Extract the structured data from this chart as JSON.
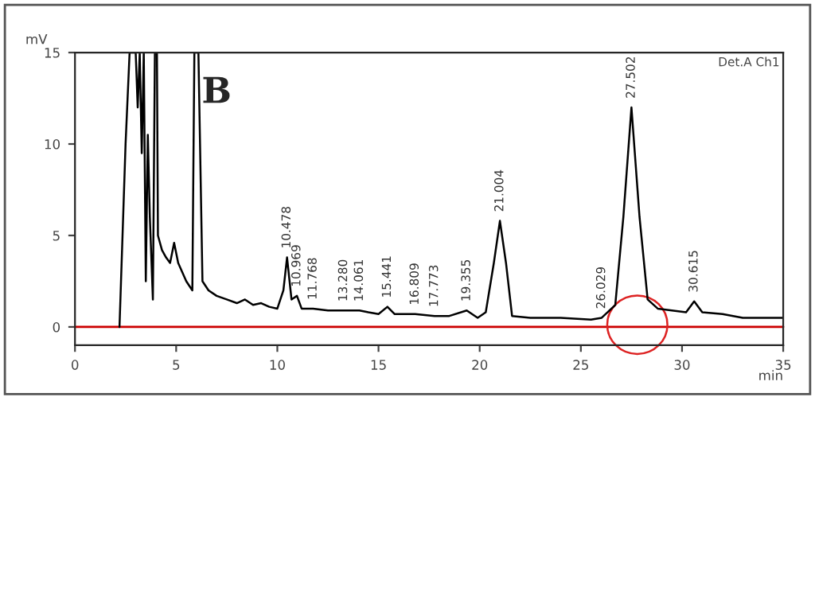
{
  "chart_data": {
    "type": "line",
    "ylabel": "mV",
    "xlabel": "min",
    "xlim": [
      0,
      35
    ],
    "ylim": [
      -1,
      15
    ],
    "xticks": [
      0,
      5,
      10,
      15,
      20,
      25,
      30,
      35
    ],
    "yticks": [
      0,
      5,
      10,
      15
    ],
    "grid": false,
    "legend": false,
    "marker": "none",
    "line_style": "solid",
    "series": [
      {
        "color": "#000000",
        "x": [
          2.2,
          2.5,
          2.7,
          3.0,
          3.1,
          3.2,
          3.3,
          3.4,
          3.5,
          3.6,
          3.7,
          3.85,
          3.95,
          4.05,
          4.1,
          4.3,
          4.5,
          4.7,
          4.9,
          5.1,
          5.5,
          5.8,
          5.9,
          6.1,
          6.3,
          6.6,
          7.0,
          7.5,
          8.0,
          8.4,
          8.8,
          9.2,
          9.6,
          10.0,
          10.3,
          10.48,
          10.7,
          10.97,
          11.2,
          11.77,
          12.5,
          13.28,
          14.06,
          14.5,
          15.0,
          15.44,
          15.8,
          16.81,
          17.77,
          18.5,
          19.36,
          19.9,
          20.3,
          20.7,
          21.0,
          21.3,
          21.6,
          22.5,
          24.0,
          25.5,
          26.03,
          26.7,
          27.1,
          27.5,
          27.9,
          28.3,
          28.8,
          29.5,
          30.2,
          30.6,
          31.0,
          32.0,
          33.0,
          35.0
        ],
        "values": [
          0,
          10,
          15,
          15,
          12,
          15,
          9.5,
          15,
          2.5,
          10.5,
          6,
          1.5,
          15,
          15,
          5,
          4.2,
          3.8,
          3.5,
          4.6,
          3.5,
          2.5,
          2.0,
          15,
          15,
          2.5,
          2.0,
          1.7,
          1.5,
          1.3,
          1.5,
          1.2,
          1.3,
          1.1,
          1.0,
          2.0,
          3.8,
          1.5,
          1.7,
          1.0,
          1.0,
          0.9,
          0.9,
          0.9,
          0.8,
          0.7,
          1.1,
          0.7,
          0.7,
          0.6,
          0.6,
          0.9,
          0.5,
          0.8,
          3.5,
          5.8,
          3.5,
          0.6,
          0.5,
          0.5,
          0.4,
          0.5,
          1.2,
          6,
          12,
          6,
          1.5,
          1.0,
          0.9,
          0.8,
          1.4,
          0.8,
          0.7,
          0.5,
          0.5
        ]
      }
    ],
    "ref_lines": [
      {
        "axis": "y",
        "value": 0,
        "color": "#cc0000",
        "line_style": "solid"
      }
    ],
    "annotations": [
      "B",
      "Det.A Ch1",
      {
        "text": "10.478",
        "x": 10.48,
        "y": 3.8
      },
      {
        "text": "10.969",
        "x": 10.97,
        "y": 1.7
      },
      {
        "text": "11.768",
        "x": 11.77,
        "y": 1.0
      },
      {
        "text": "13.280",
        "x": 13.28,
        "y": 0.9
      },
      {
        "text": "14.061",
        "x": 14.06,
        "y": 0.9
      },
      {
        "text": "15.441",
        "x": 15.44,
        "y": 1.1
      },
      {
        "text": "16.809",
        "x": 16.81,
        "y": 0.7
      },
      {
        "text": "17.773",
        "x": 17.77,
        "y": 0.6
      },
      {
        "text": "19.355",
        "x": 19.36,
        "y": 0.9
      },
      {
        "text": "21.004",
        "x": 21.0,
        "y": 5.8
      },
      {
        "text": "26.029",
        "x": 26.03,
        "y": 0.5
      },
      {
        "text": "27.502",
        "x": 27.5,
        "y": 12
      },
      {
        "text": "30.615",
        "x": 30.6,
        "y": 1.4
      }
    ]
  }
}
